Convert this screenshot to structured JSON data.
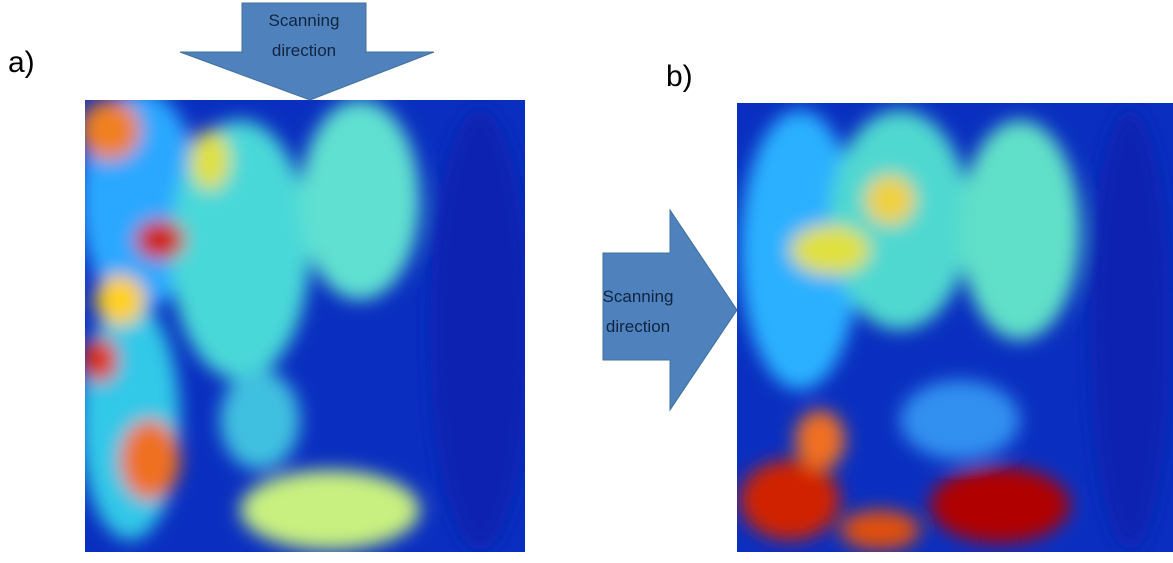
{
  "panels": [
    {
      "label": "a)",
      "arrow": {
        "lines": [
          "Scanning",
          "direction"
        ]
      }
    },
    {
      "label": "b)",
      "arrow": {
        "lines": [
          "Scanning",
          "direction"
        ]
      }
    }
  ]
}
